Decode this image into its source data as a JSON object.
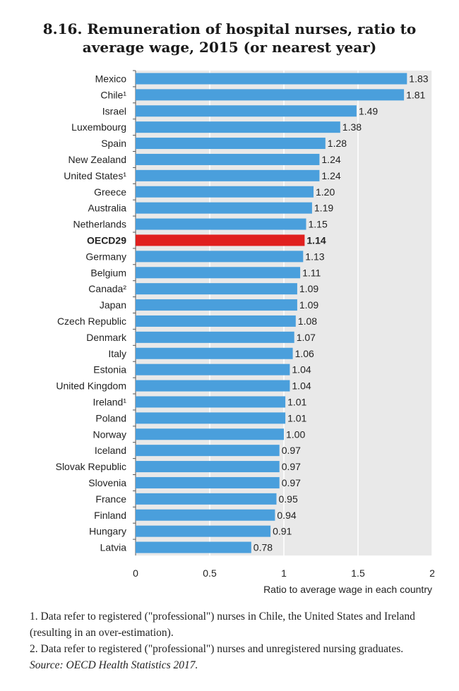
{
  "title": {
    "line1": "8.16. Remuneration of hospital nurses, ratio to",
    "line2": "average wage, 2015 (or nearest year)"
  },
  "chart_data": {
    "type": "bar",
    "orientation": "horizontal",
    "categories": [
      "Mexico",
      "Chile¹",
      "Israel",
      "Luxembourg",
      "Spain",
      "New Zealand",
      "United States¹",
      "Greece",
      "Australia",
      "Netherlands",
      "OECD29",
      "Germany",
      "Belgium",
      "Canada²",
      "Japan",
      "Czech Republic",
      "Denmark",
      "Italy",
      "Estonia",
      "United Kingdom",
      "Ireland¹",
      "Poland",
      "Norway",
      "Iceland",
      "Slovak Republic",
      "Slovenia",
      "France",
      "Finland",
      "Hungary",
      "Latvia"
    ],
    "values": [
      1.83,
      1.81,
      1.49,
      1.38,
      1.28,
      1.24,
      1.24,
      1.2,
      1.19,
      1.15,
      1.14,
      1.13,
      1.11,
      1.09,
      1.09,
      1.08,
      1.07,
      1.06,
      1.04,
      1.04,
      1.01,
      1.01,
      1.0,
      0.97,
      0.97,
      0.97,
      0.95,
      0.94,
      0.91,
      0.78
    ],
    "value_labels": [
      "1.83",
      "1.81",
      "1.49",
      "1.38",
      "1.28",
      "1.24",
      "1.24",
      "1.20",
      "1.19",
      "1.15",
      "1.14",
      "1.13",
      "1.11",
      "1.09",
      "1.09",
      "1.08",
      "1.07",
      "1.06",
      "1.04",
      "1.04",
      "1.01",
      "1.01",
      "1.00",
      "0.97",
      "0.97",
      "0.97",
      "0.95",
      "0.94",
      "0.91",
      "0.78"
    ],
    "highlight": "OECD29",
    "xlim": [
      0,
      2
    ],
    "xticks": [
      0,
      0.5,
      1,
      1.5,
      2
    ],
    "xtick_labels": [
      "0",
      "0.5",
      "1",
      "1.5",
      "2"
    ],
    "xlabel": "Ratio to average wage in each country",
    "grid": true,
    "colors": {
      "bar": "#4a9fdc",
      "highlight": "#e0201e",
      "background": "#e9e9e9",
      "grid": "#ffffff"
    }
  },
  "notes": {
    "note1": "1. Data refer to registered (\"professional\") nurses in Chile, the United States and Ireland (resulting in an over-estimation).",
    "note2": "2. Data refer to registered (\"professional\") nurses and unregistered nursing graduates.",
    "source": "Source: OECD Health Statistics 2017."
  }
}
